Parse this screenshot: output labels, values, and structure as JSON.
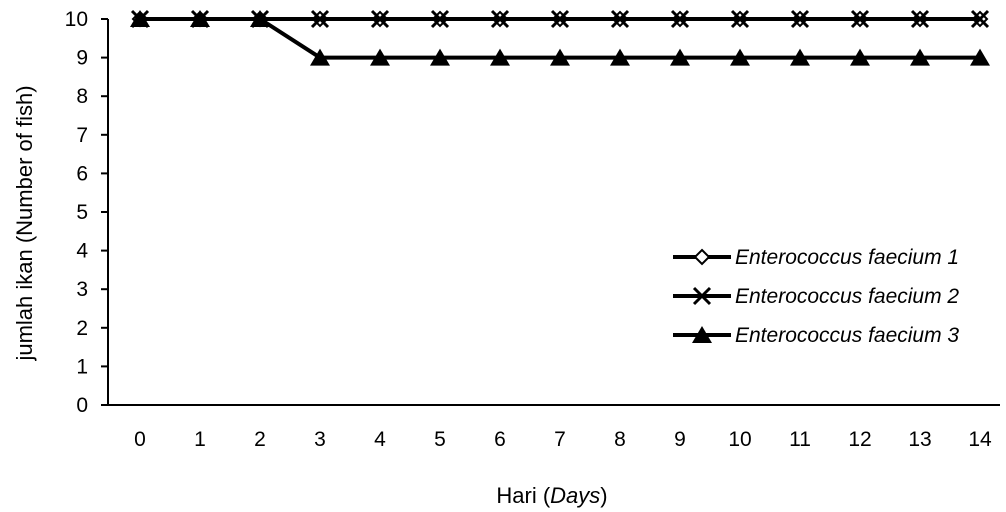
{
  "chart_data": {
    "type": "line",
    "title": "",
    "xlabel_prefix": "Hari (",
    "xlabel_italic": "Days",
    "xlabel_suffix": ")",
    "ylabel": "jumlah ikan (Number of fish)",
    "x": [
      0,
      1,
      2,
      3,
      4,
      5,
      6,
      7,
      8,
      9,
      10,
      11,
      12,
      13,
      14
    ],
    "ylim": [
      0,
      10
    ],
    "yticks": [
      0,
      1,
      2,
      3,
      4,
      5,
      6,
      7,
      8,
      9,
      10
    ],
    "grid": false,
    "legend_position": "right",
    "series": [
      {
        "name": "Enterococcus faecium 1",
        "marker": "diamond",
        "values": [
          10,
          10,
          10,
          10,
          10,
          10,
          10,
          10,
          10,
          10,
          10,
          10,
          10,
          10,
          10
        ]
      },
      {
        "name": "Enterococcus faecium 2",
        "marker": "x",
        "values": [
          10,
          10,
          10,
          10,
          10,
          10,
          10,
          10,
          10,
          10,
          10,
          10,
          10,
          10,
          10
        ]
      },
      {
        "name": "Enterococcus faecium 3",
        "marker": "triangle",
        "values": [
          10,
          10,
          10,
          9,
          9,
          9,
          9,
          9,
          9,
          9,
          9,
          9,
          9,
          9,
          9
        ]
      }
    ]
  }
}
